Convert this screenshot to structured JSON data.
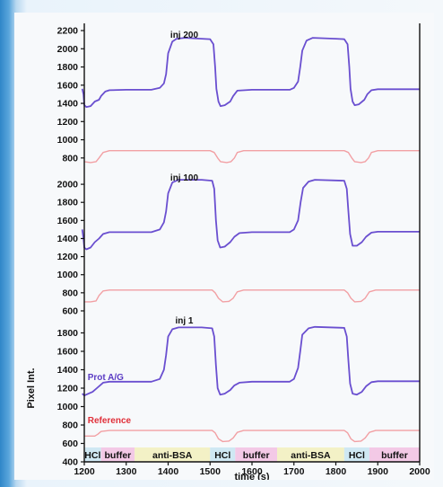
{
  "colors": {
    "protein_line": "#6a4fd0",
    "reference_line": "#f2a0a4",
    "axis": "#111111",
    "hcl_band": "#cfe8f3",
    "buffer_band": "#f3c9e6",
    "antibsa_band": "#f3f1c6"
  },
  "chart_data": [
    {
      "type": "line",
      "title": "inj 200",
      "ylim": [
        650,
        2220
      ],
      "yticks": [
        800,
        1000,
        1200,
        1400,
        1600,
        1800,
        2000,
        2200
      ],
      "xlim": [
        1200,
        2000
      ],
      "series": [
        {
          "key": "prot",
          "points": [
            [
              1195,
              1560
            ],
            [
              1198,
              1500
            ],
            [
              1200,
              1380
            ],
            [
              1205,
              1360
            ],
            [
              1215,
              1370
            ],
            [
              1225,
              1420
            ],
            [
              1235,
              1440
            ],
            [
              1240,
              1480
            ],
            [
              1250,
              1530
            ],
            [
              1260,
              1545
            ],
            [
              1300,
              1550
            ],
            [
              1360,
              1550
            ],
            [
              1380,
              1570
            ],
            [
              1390,
              1620
            ],
            [
              1395,
              1720
            ],
            [
              1400,
              1950
            ],
            [
              1410,
              2080
            ],
            [
              1420,
              2110
            ],
            [
              1440,
              2120
            ],
            [
              1480,
              2110
            ],
            [
              1500,
              2105
            ],
            [
              1508,
              2050
            ],
            [
              1512,
              1800
            ],
            [
              1515,
              1560
            ],
            [
              1520,
              1420
            ],
            [
              1525,
              1370
            ],
            [
              1535,
              1380
            ],
            [
              1548,
              1420
            ],
            [
              1555,
              1480
            ],
            [
              1565,
              1540
            ],
            [
              1600,
              1550
            ],
            [
              1690,
              1550
            ],
            [
              1700,
              1570
            ],
            [
              1710,
              1640
            ],
            [
              1715,
              1800
            ],
            [
              1720,
              1980
            ],
            [
              1730,
              2090
            ],
            [
              1745,
              2120
            ],
            [
              1800,
              2110
            ],
            [
              1820,
              2105
            ],
            [
              1828,
              2050
            ],
            [
              1832,
              1800
            ],
            [
              1835,
              1560
            ],
            [
              1840,
              1420
            ],
            [
              1845,
              1380
            ],
            [
              1855,
              1390
            ],
            [
              1868,
              1440
            ],
            [
              1875,
              1500
            ],
            [
              1885,
              1545
            ],
            [
              1900,
              1555
            ],
            [
              2000,
              1555
            ]
          ]
        },
        {
          "key": "ref",
          "points": [
            [
              1200,
              760
            ],
            [
              1215,
              750
            ],
            [
              1228,
              760
            ],
            [
              1235,
              800
            ],
            [
              1245,
              860
            ],
            [
              1260,
              880
            ],
            [
              1500,
              880
            ],
            [
              1510,
              860
            ],
            [
              1518,
              800
            ],
            [
              1525,
              760
            ],
            [
              1540,
              750
            ],
            [
              1550,
              760
            ],
            [
              1558,
              800
            ],
            [
              1565,
              860
            ],
            [
              1580,
              880
            ],
            [
              1820,
              880
            ],
            [
              1830,
              860
            ],
            [
              1838,
              800
            ],
            [
              1845,
              760
            ],
            [
              1860,
              750
            ],
            [
              1870,
              760
            ],
            [
              1878,
              800
            ],
            [
              1885,
              860
            ],
            [
              1900,
              880
            ],
            [
              2000,
              880
            ]
          ]
        }
      ]
    },
    {
      "type": "line",
      "title": "inj 100",
      "ylim": [
        560,
        2140
      ],
      "yticks": [
        600,
        800,
        1000,
        1200,
        1400,
        1600,
        1800,
        2000
      ],
      "xlim": [
        1200,
        2000
      ],
      "series": [
        {
          "key": "prot",
          "points": [
            [
              1195,
              1500
            ],
            [
              1198,
              1400
            ],
            [
              1200,
              1300
            ],
            [
              1205,
              1280
            ],
            [
              1215,
              1300
            ],
            [
              1225,
              1360
            ],
            [
              1235,
              1400
            ],
            [
              1245,
              1450
            ],
            [
              1260,
              1470
            ],
            [
              1360,
              1470
            ],
            [
              1380,
              1500
            ],
            [
              1390,
              1580
            ],
            [
              1395,
              1700
            ],
            [
              1400,
              1900
            ],
            [
              1410,
              2020
            ],
            [
              1425,
              2050
            ],
            [
              1480,
              2050
            ],
            [
              1505,
              2040
            ],
            [
              1510,
              1950
            ],
            [
              1514,
              1600
            ],
            [
              1518,
              1380
            ],
            [
              1524,
              1300
            ],
            [
              1535,
              1310
            ],
            [
              1548,
              1360
            ],
            [
              1558,
              1420
            ],
            [
              1570,
              1460
            ],
            [
              1600,
              1470
            ],
            [
              1690,
              1470
            ],
            [
              1700,
              1500
            ],
            [
              1710,
              1600
            ],
            [
              1716,
              1800
            ],
            [
              1722,
              1960
            ],
            [
              1735,
              2030
            ],
            [
              1750,
              2050
            ],
            [
              1820,
              2040
            ],
            [
              1826,
              1950
            ],
            [
              1830,
              1700
            ],
            [
              1834,
              1450
            ],
            [
              1840,
              1320
            ],
            [
              1850,
              1320
            ],
            [
              1862,
              1360
            ],
            [
              1872,
              1420
            ],
            [
              1885,
              1465
            ],
            [
              1900,
              1475
            ],
            [
              2000,
              1475
            ]
          ]
        },
        {
          "key": "ref",
          "points": [
            [
              1200,
              700
            ],
            [
              1215,
              700
            ],
            [
              1228,
              710
            ],
            [
              1235,
              770
            ],
            [
              1245,
              820
            ],
            [
              1260,
              830
            ],
            [
              1505,
              830
            ],
            [
              1512,
              800
            ],
            [
              1520,
              740
            ],
            [
              1530,
              700
            ],
            [
              1545,
              705
            ],
            [
              1555,
              740
            ],
            [
              1565,
              810
            ],
            [
              1580,
              830
            ],
            [
              1820,
              830
            ],
            [
              1828,
              800
            ],
            [
              1836,
              740
            ],
            [
              1845,
              700
            ],
            [
              1860,
              705
            ],
            [
              1870,
              740
            ],
            [
              1880,
              810
            ],
            [
              1895,
              830
            ],
            [
              2000,
              830
            ]
          ]
        }
      ]
    },
    {
      "type": "line",
      "title": "inj 1",
      "ylim": [
        400,
        2000
      ],
      "yticks": [
        400,
        600,
        800,
        1000,
        1200,
        1400,
        1600,
        1800
      ],
      "xlim": [
        1200,
        2000
      ],
      "xticks": [
        1200,
        1300,
        1400,
        1500,
        1600,
        1700,
        1800,
        1900,
        2000
      ],
      "xlabel": "time (s)",
      "ylabel": "Pixel Int.",
      "series_labels": [
        {
          "key": "prot",
          "name": "Prot A/G",
          "x": 1208,
          "y": 1290
        },
        {
          "key": "ref",
          "name": "Reference",
          "x": 1208,
          "y": 820
        }
      ],
      "series": [
        {
          "key": "prot",
          "points": [
            [
              1195,
              1140
            ],
            [
              1200,
              1120
            ],
            [
              1210,
              1140
            ],
            [
              1220,
              1160
            ],
            [
              1230,
              1200
            ],
            [
              1245,
              1260
            ],
            [
              1260,
              1270
            ],
            [
              1360,
              1270
            ],
            [
              1380,
              1300
            ],
            [
              1390,
              1400
            ],
            [
              1395,
              1560
            ],
            [
              1400,
              1760
            ],
            [
              1410,
              1840
            ],
            [
              1425,
              1860
            ],
            [
              1480,
              1860
            ],
            [
              1505,
              1850
            ],
            [
              1510,
              1760
            ],
            [
              1514,
              1450
            ],
            [
              1518,
              1200
            ],
            [
              1524,
              1130
            ],
            [
              1535,
              1140
            ],
            [
              1548,
              1180
            ],
            [
              1558,
              1230
            ],
            [
              1570,
              1260
            ],
            [
              1600,
              1270
            ],
            [
              1690,
              1270
            ],
            [
              1700,
              1300
            ],
            [
              1710,
              1420
            ],
            [
              1715,
              1600
            ],
            [
              1720,
              1780
            ],
            [
              1735,
              1850
            ],
            [
              1750,
              1865
            ],
            [
              1820,
              1855
            ],
            [
              1826,
              1760
            ],
            [
              1830,
              1500
            ],
            [
              1834,
              1250
            ],
            [
              1840,
              1140
            ],
            [
              1850,
              1130
            ],
            [
              1862,
              1160
            ],
            [
              1872,
              1220
            ],
            [
              1885,
              1265
            ],
            [
              1900,
              1275
            ],
            [
              2000,
              1275
            ]
          ]
        },
        {
          "key": "ref",
          "points": [
            [
              1200,
              680
            ],
            [
              1225,
              680
            ],
            [
              1232,
              700
            ],
            [
              1240,
              730
            ],
            [
              1260,
              740
            ],
            [
              1505,
              740
            ],
            [
              1512,
              715
            ],
            [
              1520,
              650
            ],
            [
              1530,
              620
            ],
            [
              1545,
              625
            ],
            [
              1555,
              660
            ],
            [
              1565,
              720
            ],
            [
              1580,
              740
            ],
            [
              1820,
              740
            ],
            [
              1828,
              715
            ],
            [
              1836,
              650
            ],
            [
              1845,
              620
            ],
            [
              1860,
              625
            ],
            [
              1870,
              660
            ],
            [
              1880,
              720
            ],
            [
              1895,
              740
            ],
            [
              2000,
              740
            ]
          ]
        }
      ],
      "segments": [
        {
          "label": "HCl",
          "kind": "hcl",
          "from": 1200,
          "to": 1240
        },
        {
          "label": "buffer",
          "kind": "buffer",
          "from": 1240,
          "to": 1320
        },
        {
          "label": "anti-BSA",
          "kind": "antibsa",
          "from": 1320,
          "to": 1500
        },
        {
          "label": "HCl",
          "kind": "hcl",
          "from": 1500,
          "to": 1560
        },
        {
          "label": "buffer",
          "kind": "buffer",
          "from": 1560,
          "to": 1660
        },
        {
          "label": "anti-BSA",
          "kind": "antibsa",
          "from": 1660,
          "to": 1820
        },
        {
          "label": "HCl",
          "kind": "hcl",
          "from": 1820,
          "to": 1880
        },
        {
          "label": "buffer",
          "kind": "buffer",
          "from": 1880,
          "to": 2000
        }
      ]
    }
  ]
}
